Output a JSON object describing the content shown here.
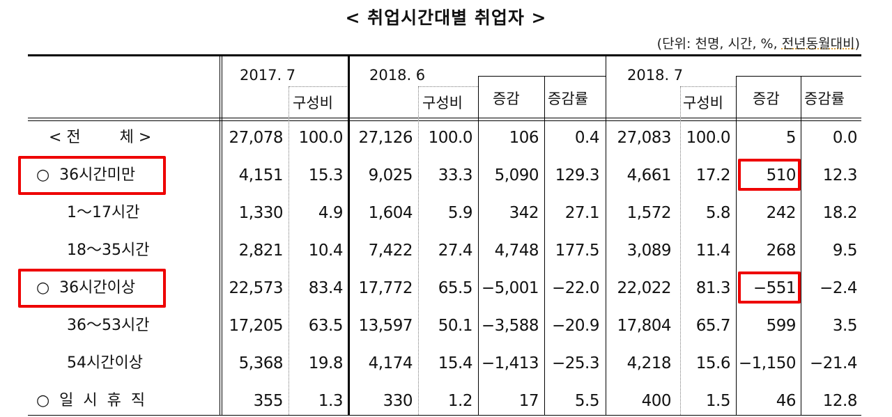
{
  "title": "< 취업시간대별 취업자 >",
  "unit_prefix": "(단위: 천명, 시간, %, ",
  "unit_underlined": "전년동월대비",
  "unit_suffix": ")",
  "header": {
    "period1": "2017. 7",
    "period2": "2018. 6",
    "period3": "2018. 7",
    "share": "구성비",
    "change": "증감",
    "change_rate": "증감률"
  },
  "rows": [
    {
      "label": "< 전        체 >",
      "v17": "27,078",
      "s17": "100.0",
      "v186": "27,126",
      "s186": "100.0",
      "c186": "106",
      "r186": "0.4",
      "v187": "27,083",
      "s187": "100.0",
      "c187": "5",
      "r187": "0.0",
      "highlight": false
    },
    {
      "label": "○  36시간미만",
      "v17": "4,151",
      "s17": "15.3",
      "v186": "9,025",
      "s186": "33.3",
      "c186": "5,090",
      "r186": "129.3",
      "v187": "4,661",
      "s187": "17.2",
      "c187": "510",
      "r187": "12.3",
      "highlight": true
    },
    {
      "label": "1～17시간",
      "v17": "1,330",
      "s17": "4.9",
      "v186": "1,604",
      "s186": "5.9",
      "c186": "342",
      "r186": "27.1",
      "v187": "1,572",
      "s187": "5.8",
      "c187": "242",
      "r187": "18.2",
      "highlight": false
    },
    {
      "label": "18～35시간",
      "v17": "2,821",
      "s17": "10.4",
      "v186": "7,422",
      "s186": "27.4",
      "c186": "4,748",
      "r186": "177.5",
      "v187": "3,089",
      "s187": "11.4",
      "c187": "268",
      "r187": "9.5",
      "highlight": false
    },
    {
      "label": "○  36시간이상",
      "v17": "22,573",
      "s17": "83.4",
      "v186": "17,772",
      "s186": "65.5",
      "c186": "−5,001",
      "r186": "−22.0",
      "v187": "22,022",
      "s187": "81.3",
      "c187": "−551",
      "r187": "−2.4",
      "highlight": true
    },
    {
      "label": "36～53시간",
      "v17": "17,205",
      "s17": "63.5",
      "v186": "13,597",
      "s186": "50.1",
      "c186": "−3,588",
      "r186": "−20.9",
      "v187": "17,804",
      "s187": "65.7",
      "c187": "599",
      "r187": "3.5",
      "highlight": false
    },
    {
      "label": "54시간이상",
      "v17": "5,368",
      "s17": "19.8",
      "v186": "4,174",
      "s186": "15.4",
      "c186": "−1,413",
      "r186": "−25.3",
      "v187": "4,218",
      "s187": "15.6",
      "c187": "−1,150",
      "r187": "−21.4",
      "highlight": false
    },
    {
      "label": "○  일  시  휴  직",
      "v17": "355",
      "s17": "1.3",
      "v186": "330",
      "s186": "1.2",
      "c186": "17",
      "r186": "5.5",
      "v187": "400",
      "s187": "1.5",
      "c187": "46",
      "r187": "12.8",
      "highlight": false
    }
  ],
  "highlight_color": "#ee0000"
}
